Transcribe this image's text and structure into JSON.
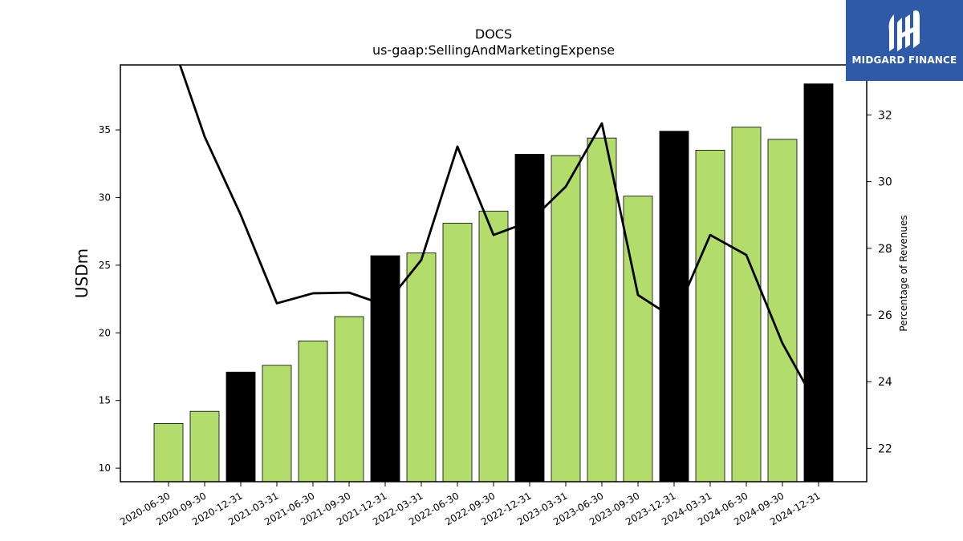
{
  "chart_data": {
    "type": "bar",
    "title": "DOCS",
    "subtitle": "us-gaap:SellingAndMarketingExpense",
    "ylabel": "USDm",
    "y2label": "Percentage of Revenues",
    "ylim": [
      9,
      39.8
    ],
    "y2lim": [
      21,
      33.5
    ],
    "yticks": [
      10,
      15,
      20,
      25,
      30,
      35
    ],
    "y2ticks": [
      22,
      24,
      26,
      28,
      30,
      32
    ],
    "categories": [
      "2020-06-30",
      "2020-09-30",
      "2020-12-31",
      "2021-03-31",
      "2021-06-30",
      "2021-09-30",
      "2021-12-31",
      "2022-03-31",
      "2022-06-30",
      "2022-09-30",
      "2022-12-31",
      "2023-03-31",
      "2023-06-30",
      "2023-09-30",
      "2023-12-31",
      "2024-03-31",
      "2024-06-30",
      "2024-09-30",
      "2024-12-31"
    ],
    "series": [
      {
        "type": "bar",
        "axis": "left",
        "values": [
          13.3,
          14.2,
          17.1,
          17.6,
          19.4,
          21.2,
          25.7,
          25.9,
          28.1,
          29.0,
          33.2,
          33.1,
          34.4,
          30.1,
          34.9,
          33.5,
          35.2,
          34.3,
          38.4
        ],
        "colors": [
          "#b2dd6b",
          "#b2dd6b",
          "#000000",
          "#b2dd6b",
          "#b2dd6b",
          "#b2dd6b",
          "#000000",
          "#b2dd6b",
          "#b2dd6b",
          "#b2dd6b",
          "#000000",
          "#b2dd6b",
          "#b2dd6b",
          "#b2dd6b",
          "#000000",
          "#b2dd6b",
          "#b2dd6b",
          "#b2dd6b",
          "#000000"
        ]
      },
      {
        "type": "line",
        "axis": "right",
        "color": "#000000",
        "values": [
          34.5,
          31.35,
          29.0,
          26.35,
          26.65,
          26.67,
          26.3,
          27.65,
          31.05,
          28.4,
          28.8,
          29.85,
          31.75,
          26.6,
          25.9,
          28.4,
          27.8,
          25.15,
          23.2
        ]
      }
    ],
    "grid": false
  },
  "logo": {
    "text": "MIDGARD FINANCE",
    "background": "#2f5aa8"
  }
}
